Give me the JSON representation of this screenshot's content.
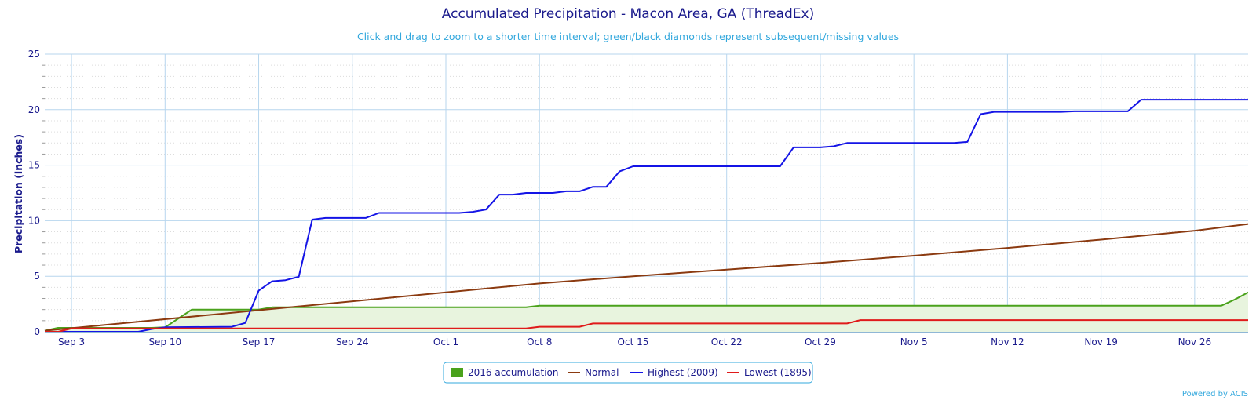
{
  "chart_data": {
    "type": "line",
    "title": "Accumulated Precipitation - Macon Area, GA (ThreadEx)",
    "subtitle": "Click and drag to zoom to a shorter time interval; green/black diamonds represent subsequent/missing values",
    "xlabel": "",
    "ylabel": "Precipitation (inches)",
    "ylim": [
      0,
      25
    ],
    "y_ticks": [
      "0",
      "5",
      "10",
      "15",
      "20",
      "25"
    ],
    "x_start": "2016-09-01",
    "x_end": "2016-11-30",
    "x_ticks": [
      {
        "date": "2016-09-03",
        "label": "Sep 3"
      },
      {
        "date": "2016-09-10",
        "label": "Sep 10"
      },
      {
        "date": "2016-09-17",
        "label": "Sep 17"
      },
      {
        "date": "2016-09-24",
        "label": "Sep 24"
      },
      {
        "date": "2016-10-01",
        "label": "Oct 1"
      },
      {
        "date": "2016-10-08",
        "label": "Oct 8"
      },
      {
        "date": "2016-10-15",
        "label": "Oct 15"
      },
      {
        "date": "2016-10-22",
        "label": "Oct 22"
      },
      {
        "date": "2016-10-29",
        "label": "Oct 29"
      },
      {
        "date": "2016-11-05",
        "label": "Nov 5"
      },
      {
        "date": "2016-11-12",
        "label": "Nov 12"
      },
      {
        "date": "2016-11-19",
        "label": "Nov 19"
      },
      {
        "date": "2016-11-26",
        "label": "Nov 26"
      }
    ],
    "grid": true,
    "legend_position": "bottom-center",
    "series": [
      {
        "name": "2016 accumulation",
        "type": "area",
        "color": "#4aa21c",
        "fill": "#e8f4de",
        "points": [
          [
            "2016-09-01",
            0.1
          ],
          [
            "2016-09-02",
            0.35
          ],
          [
            "2016-09-09",
            0.35
          ],
          [
            "2016-09-10",
            0.4
          ],
          [
            "2016-09-11",
            1.2
          ],
          [
            "2016-09-12",
            2.0
          ],
          [
            "2016-09-17",
            2.0
          ],
          [
            "2016-09-18",
            2.2
          ],
          [
            "2016-10-07",
            2.2
          ],
          [
            "2016-10-08",
            2.35
          ],
          [
            "2016-11-28",
            2.35
          ],
          [
            "2016-11-29",
            2.9
          ],
          [
            "2016-11-30",
            3.55
          ]
        ]
      },
      {
        "name": "Normal",
        "type": "line",
        "color": "#8b3a10",
        "points": [
          [
            "2016-09-01",
            0.1
          ],
          [
            "2016-10-08",
            4.35
          ],
          [
            "2016-10-15",
            5.0
          ],
          [
            "2016-10-22",
            5.6
          ],
          [
            "2016-10-29",
            6.2
          ],
          [
            "2016-11-05",
            6.85
          ],
          [
            "2016-11-12",
            7.55
          ],
          [
            "2016-11-19",
            8.3
          ],
          [
            "2016-11-26",
            9.1
          ],
          [
            "2016-11-30",
            9.7
          ]
        ]
      },
      {
        "name": "Highest (2009)",
        "type": "line",
        "color": "#1414e6",
        "points": [
          [
            "2016-09-01",
            0.0
          ],
          [
            "2016-09-08",
            0.0
          ],
          [
            "2016-09-09",
            0.25
          ],
          [
            "2016-09-10",
            0.4
          ],
          [
            "2016-09-15",
            0.45
          ],
          [
            "2016-09-16",
            0.8
          ],
          [
            "2016-09-17",
            3.7
          ],
          [
            "2016-09-18",
            4.55
          ],
          [
            "2016-09-19",
            4.65
          ],
          [
            "2016-09-20",
            4.95
          ],
          [
            "2016-09-21",
            10.1
          ],
          [
            "2016-09-22",
            10.25
          ],
          [
            "2016-09-25",
            10.25
          ],
          [
            "2016-09-26",
            10.7
          ],
          [
            "2016-10-02",
            10.7
          ],
          [
            "2016-10-03",
            10.8
          ],
          [
            "2016-10-04",
            11.0
          ],
          [
            "2016-10-05",
            12.35
          ],
          [
            "2016-10-06",
            12.35
          ],
          [
            "2016-10-07",
            12.5
          ],
          [
            "2016-10-09",
            12.5
          ],
          [
            "2016-10-10",
            12.65
          ],
          [
            "2016-10-11",
            12.65
          ],
          [
            "2016-10-12",
            13.05
          ],
          [
            "2016-10-13",
            13.05
          ],
          [
            "2016-10-14",
            14.45
          ],
          [
            "2016-10-15",
            14.9
          ],
          [
            "2016-10-26",
            14.9
          ],
          [
            "2016-10-27",
            16.6
          ],
          [
            "2016-10-29",
            16.6
          ],
          [
            "2016-10-30",
            16.7
          ],
          [
            "2016-10-31",
            17.0
          ],
          [
            "2016-11-08",
            17.0
          ],
          [
            "2016-11-09",
            17.1
          ],
          [
            "2016-11-10",
            19.6
          ],
          [
            "2016-11-11",
            19.8
          ],
          [
            "2016-11-16",
            19.8
          ],
          [
            "2016-11-17",
            19.85
          ],
          [
            "2016-11-21",
            19.85
          ],
          [
            "2016-11-22",
            20.9
          ],
          [
            "2016-11-30",
            20.9
          ]
        ]
      },
      {
        "name": "Lowest (1895)",
        "type": "line",
        "color": "#e01b1b",
        "points": [
          [
            "2016-09-01",
            0.0
          ],
          [
            "2016-09-02",
            0.0
          ],
          [
            "2016-09-03",
            0.3
          ],
          [
            "2016-10-07",
            0.3
          ],
          [
            "2016-10-08",
            0.45
          ],
          [
            "2016-10-11",
            0.45
          ],
          [
            "2016-10-12",
            0.75
          ],
          [
            "2016-10-31",
            0.75
          ],
          [
            "2016-11-01",
            1.05
          ],
          [
            "2016-11-30",
            1.05
          ]
        ]
      }
    ],
    "legend": [
      {
        "label": "2016 accumulation",
        "symbol": "box",
        "color": "#4aa21c"
      },
      {
        "label": "Normal",
        "symbol": "line",
        "color": "#8b3a10"
      },
      {
        "label": "Highest (2009)",
        "symbol": "line",
        "color": "#1414e6"
      },
      {
        "label": "Lowest (1895)",
        "symbol": "line",
        "color": "#e01b1b"
      }
    ]
  },
  "credit": "Powered by ACIS"
}
